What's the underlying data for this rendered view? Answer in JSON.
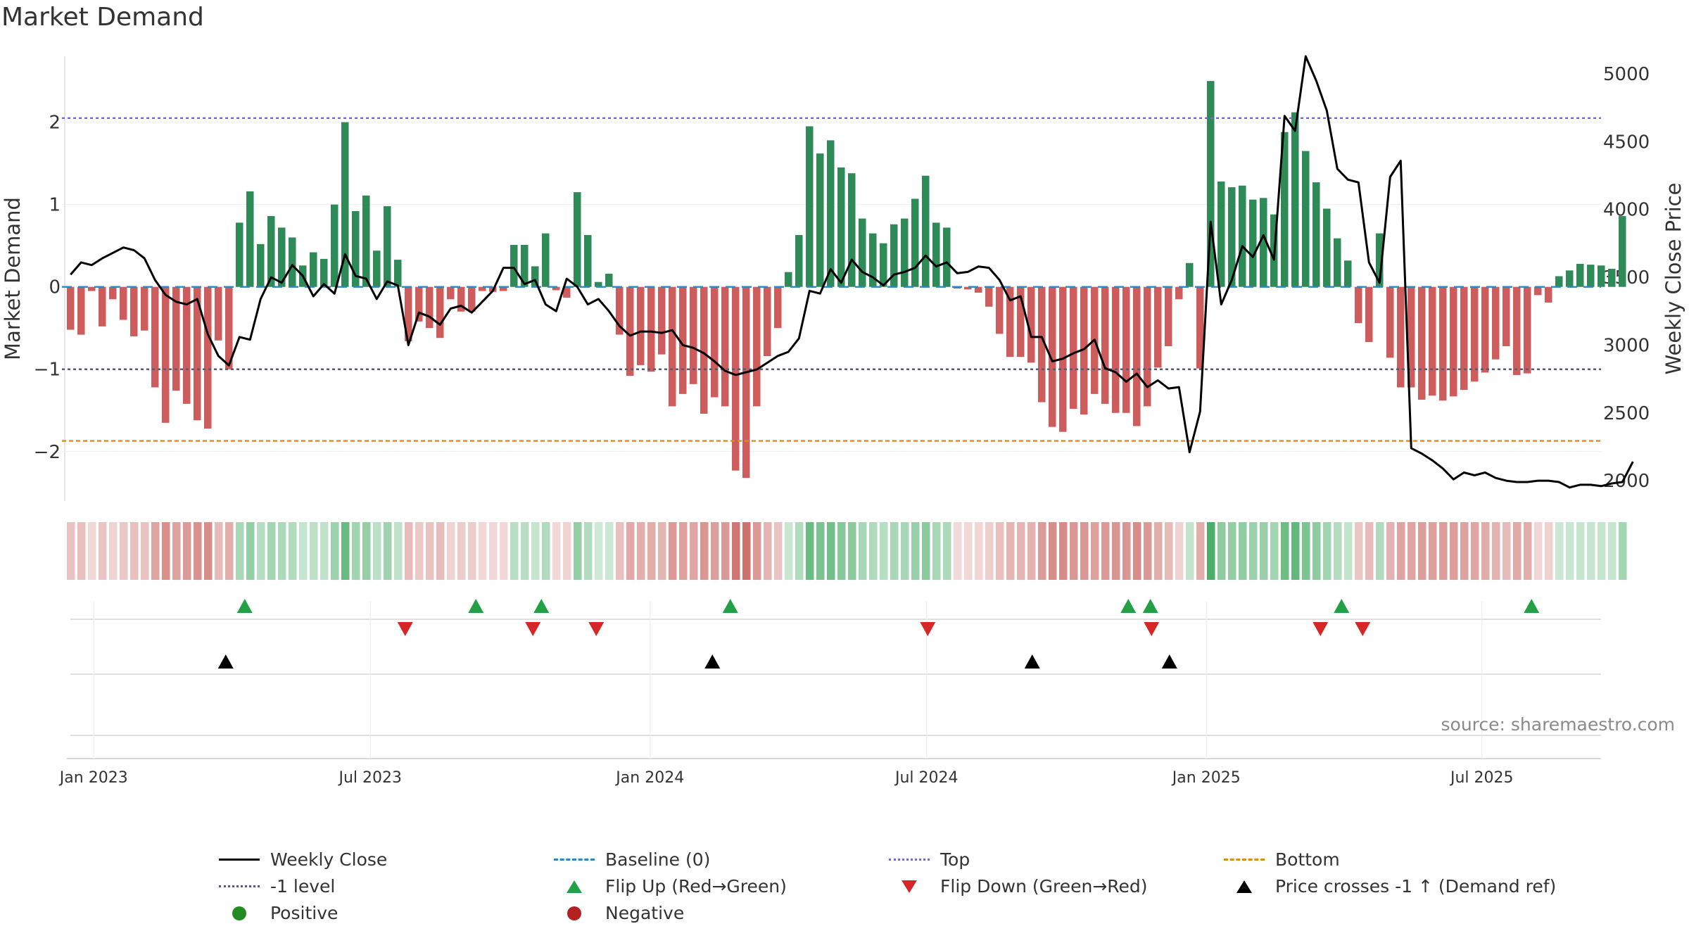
{
  "chart_data": {
    "type": "bar+line",
    "title": "Market Demand",
    "ylabel_left": "Market Demand",
    "ylabel_right": "Weekly Close Price",
    "source": "source: sharemaestro.com",
    "left_yticks": [
      "2",
      "1",
      "0",
      "−1",
      "−2"
    ],
    "left_ytick_values": [
      2,
      1,
      0,
      -1,
      -2
    ],
    "left_ylim": [
      -2.6,
      2.8
    ],
    "right_yticks": [
      "5000",
      "4500",
      "4000",
      "3500",
      "3000",
      "2500",
      "2000"
    ],
    "right_ytick_values": [
      5000,
      4500,
      4000,
      3500,
      3000,
      2500,
      2000
    ],
    "right_ylim": [
      1850,
      5130
    ],
    "xticks": [
      "Jan 2023",
      "Jul 2023",
      "Jan 2024",
      "Jul 2024",
      "Jan 2025",
      "Jul 2025"
    ],
    "xtick_week_index": [
      2.2,
      28.4,
      54.9,
      81.1,
      107.6,
      133.7
    ],
    "week_start": "2022-12-20",
    "reference_lines": [
      {
        "name": "Top",
        "value": 2.05,
        "color": "#7b68c8"
      },
      {
        "name": "-1 level",
        "value": -1.0,
        "color": "#555b7a"
      },
      {
        "name": "Bottom",
        "value": -1.87,
        "color": "#e08a1e"
      },
      {
        "name": "Baseline (0)",
        "value": 0,
        "color": "#2e86c1"
      }
    ],
    "demand": [
      -0.52,
      -0.58,
      -0.05,
      -0.48,
      -0.15,
      -0.4,
      -0.6,
      -0.53,
      -1.22,
      -1.65,
      -1.26,
      -1.42,
      -1.62,
      -1.72,
      -0.65,
      -1.0,
      0.78,
      1.16,
      0.52,
      0.86,
      0.72,
      0.6,
      0.26,
      0.42,
      0.34,
      1.0,
      2.0,
      0.92,
      1.11,
      0.44,
      0.98,
      0.33,
      -0.66,
      -0.42,
      -0.5,
      -0.62,
      -0.15,
      -0.3,
      -0.3,
      -0.05,
      -0.06,
      -0.05,
      0.51,
      0.51,
      0.25,
      0.65,
      -0.04,
      -0.13,
      1.15,
      0.63,
      0.06,
      0.16,
      -0.58,
      -1.08,
      -0.95,
      -1.03,
      -0.82,
      -1.45,
      -1.3,
      -1.18,
      -1.54,
      -1.34,
      -1.45,
      -2.23,
      -2.32,
      -1.45,
      -0.84,
      -0.5,
      0.18,
      0.63,
      1.95,
      1.62,
      1.78,
      1.45,
      1.38,
      0.83,
      0.65,
      0.53,
      0.76,
      0.83,
      1.07,
      1.35,
      0.78,
      0.72,
      -0.02,
      -0.03,
      -0.07,
      -0.24,
      -0.57,
      -0.85,
      -0.85,
      -0.92,
      -1.4,
      -1.7,
      -1.76,
      -1.48,
      -1.55,
      -1.3,
      -1.42,
      -1.53,
      -1.53,
      -1.69,
      -1.45,
      -0.98,
      -0.72,
      -0.15,
      0.29,
      -0.99,
      2.5,
      1.28,
      1.21,
      1.23,
      1.06,
      1.08,
      0.88,
      1.88,
      2.12,
      1.65,
      1.27,
      0.95,
      0.59,
      0.32,
      -0.44,
      -0.67,
      0.65,
      -0.86,
      -1.22,
      -1.22,
      -1.37,
      -1.32,
      -1.38,
      -1.33,
      -1.25,
      -1.15,
      -1.04,
      -0.88,
      -0.72,
      -1.07,
      -1.05,
      -0.1,
      -0.19,
      0.13,
      0.2,
      0.28,
      0.27,
      0.26,
      0.22,
      0.86
    ],
    "weekly_close": [
      3520,
      3610,
      3590,
      3640,
      3680,
      3720,
      3700,
      3640,
      3480,
      3370,
      3320,
      3300,
      3340,
      3080,
      2920,
      2850,
      3060,
      3040,
      3340,
      3500,
      3460,
      3590,
      3510,
      3360,
      3450,
      3380,
      3670,
      3510,
      3490,
      3340,
      3470,
      3440,
      3000,
      3240,
      3210,
      3150,
      3270,
      3290,
      3240,
      3320,
      3400,
      3570,
      3570,
      3450,
      3480,
      3300,
      3250,
      3490,
      3430,
      3300,
      3340,
      3250,
      3140,
      3070,
      3100,
      3100,
      3090,
      3110,
      3000,
      2980,
      2940,
      2880,
      2810,
      2780,
      2800,
      2820,
      2870,
      2920,
      2950,
      3050,
      3400,
      3380,
      3560,
      3460,
      3630,
      3540,
      3500,
      3440,
      3520,
      3540,
      3570,
      3660,
      3580,
      3610,
      3530,
      3540,
      3580,
      3570,
      3480,
      3330,
      3360,
      3060,
      3060,
      2880,
      2900,
      2940,
      2970,
      3040,
      2830,
      2800,
      2730,
      2790,
      2690,
      2740,
      2680,
      2690,
      2210,
      2510,
      3910,
      3300,
      3480,
      3730,
      3650,
      3810,
      3630,
      4690,
      4580,
      5130,
      4950,
      4730,
      4300,
      4220,
      4200,
      3610,
      3460,
      4240,
      4360,
      2240,
      2200,
      2150,
      2090,
      2010,
      2060,
      2040,
      2060,
      2020,
      2000,
      1990,
      1990,
      2000,
      2000,
      1990,
      1950,
      1970,
      1970,
      1960,
      1980,
      1990,
      2140
    ],
    "flip_up_week_index": [
      16.5,
      38.4,
      44.6,
      62.5,
      100.2,
      102.3,
      120.4,
      138.4
    ],
    "flip_down_week_index": [
      31.7,
      43.8,
      49.8,
      81.2,
      102.4,
      118.4,
      122.4
    ],
    "price_cross_week_index": [
      14.7,
      60.8,
      91.1,
      104.1
    ]
  },
  "legend": {
    "weekly_close": "Weekly Close",
    "baseline": "Baseline (0)",
    "top": "Top",
    "bottom": "Bottom",
    "minus1": "-1 level",
    "flip_up": "Flip Up (Red→Green)",
    "flip_down": "Flip Down (Green→Red)",
    "price_cross": "Price crosses -1 ↑ (Demand ref)",
    "positive": "Positive",
    "negative": "Negative"
  },
  "colors": {
    "positive": "#2e8b57",
    "negative": "#cd5c5c",
    "price": "#000000",
    "flip_up": "#22a045",
    "flip_down": "#d62728",
    "cross": "#000000",
    "dot_positive": "#228b22",
    "dot_negative": "#b22222"
  }
}
